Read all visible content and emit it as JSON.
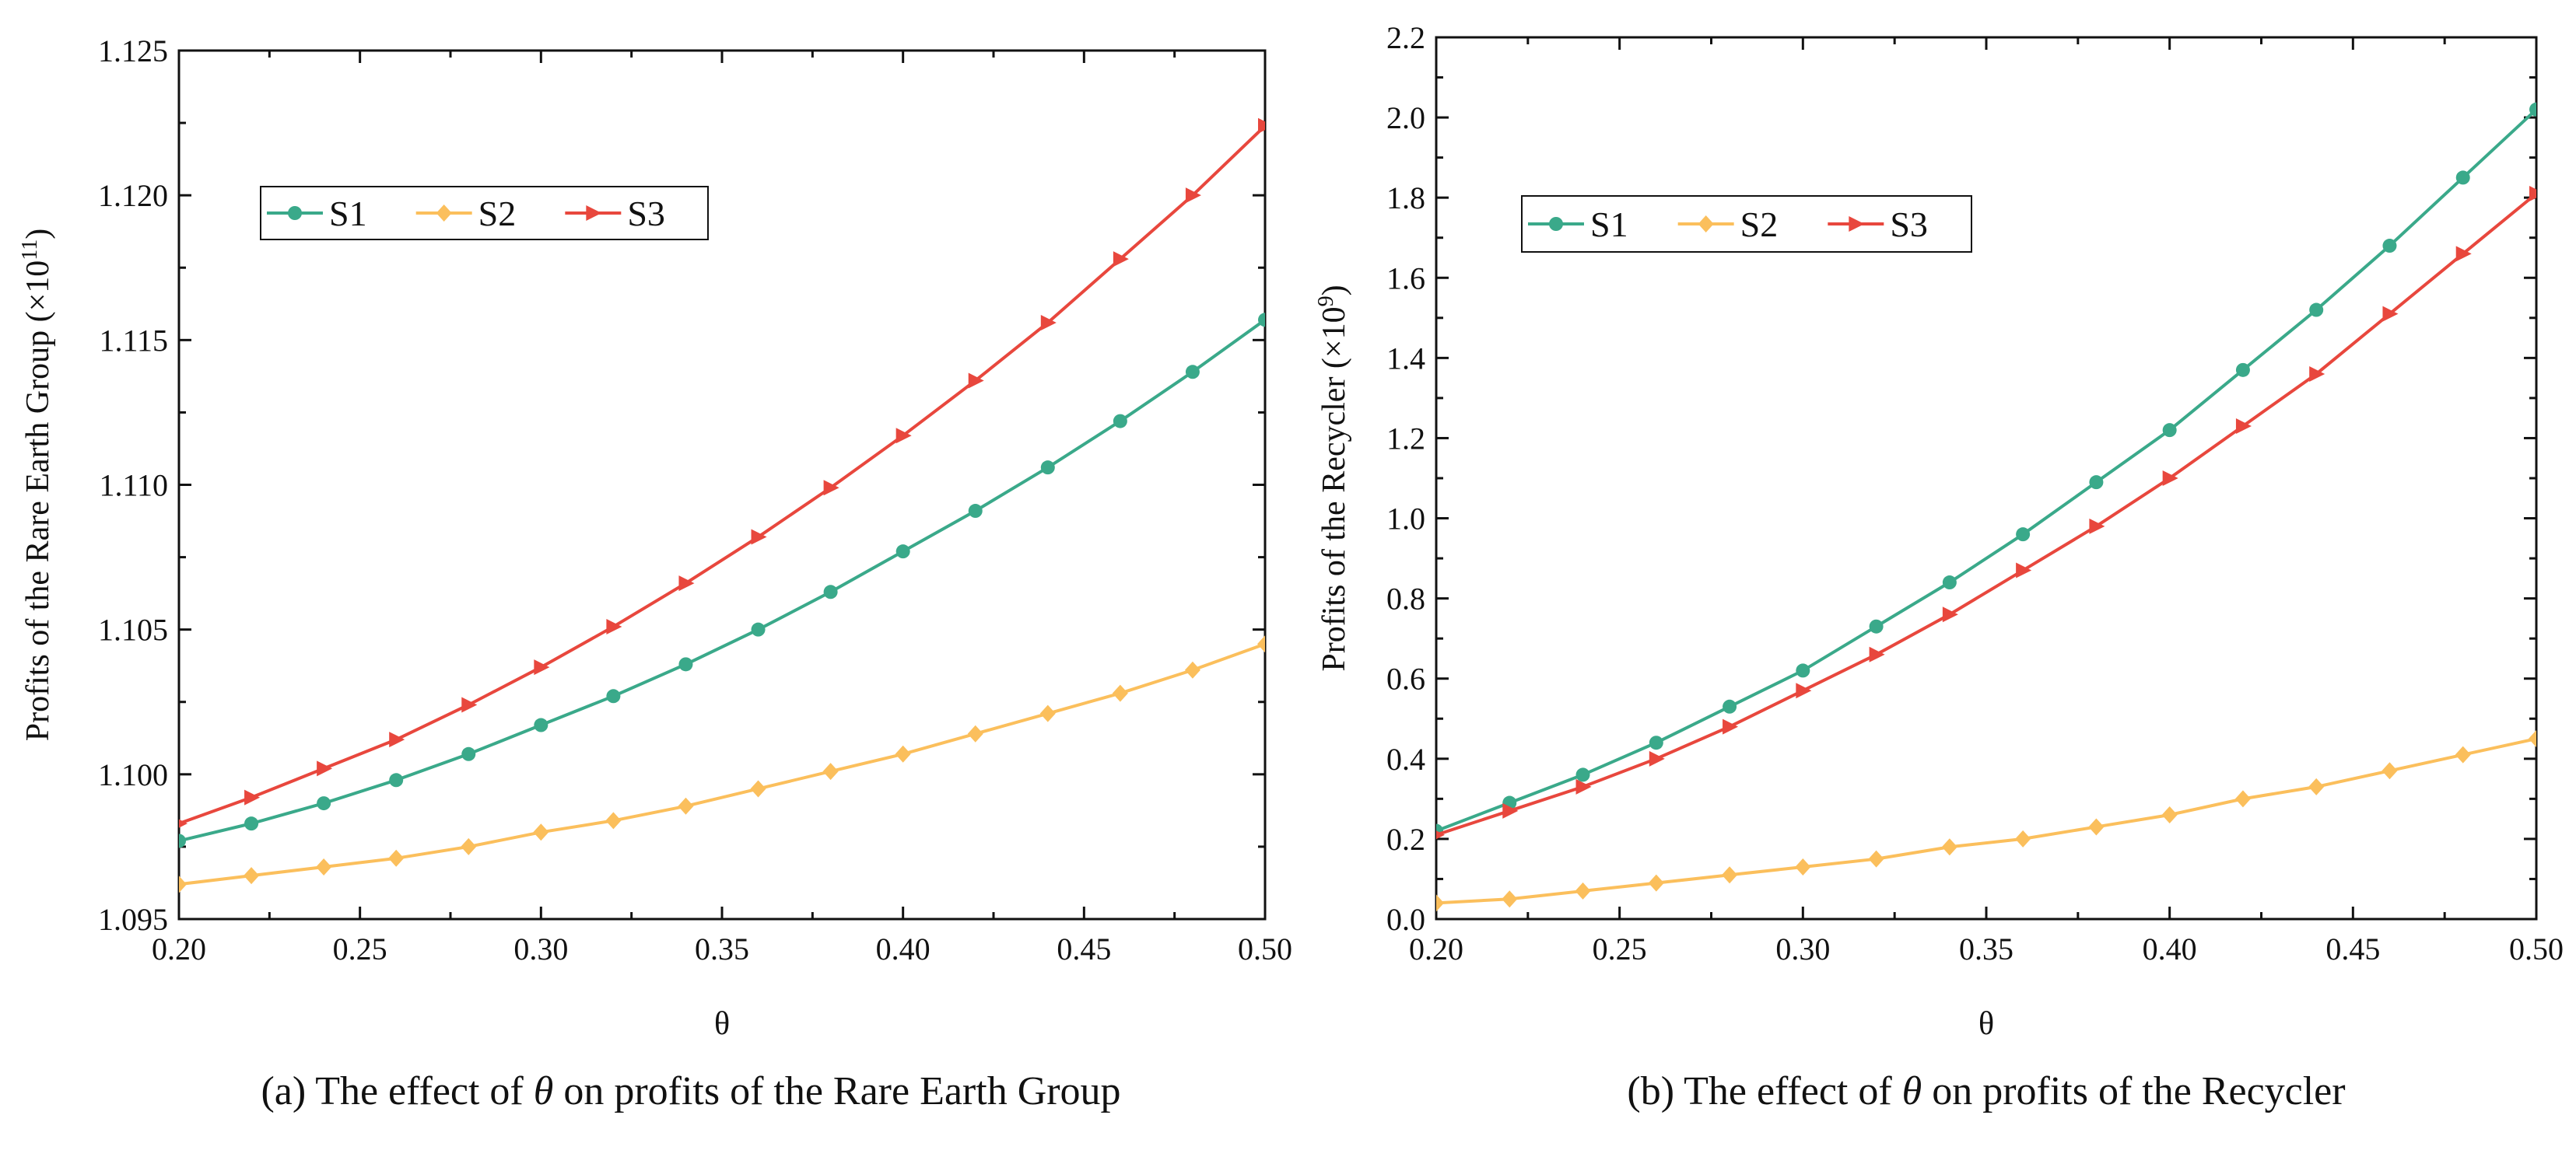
{
  "colors": {
    "S1": "#3aa98a",
    "S2": "#fbbf5c",
    "S3": "#e8473d",
    "axis": "#111111"
  },
  "captions": {
    "a_prefix": "(a) The effect of ",
    "a_suffix": " on profits of the Rare Earth Group",
    "b_prefix": "(b) The effect of ",
    "b_suffix": " on profits of the Recycler",
    "symbol": "θ"
  },
  "chart_data": [
    {
      "type": "line",
      "title": "",
      "xlabel": "θ",
      "ylabel_main": "Profits of the Rare Earth Group (×10",
      "ylabel_exp": "11",
      "ylabel_close": ")",
      "xlim": [
        0.2,
        0.5
      ],
      "ylim": [
        1.095,
        1.125
      ],
      "xticks": [
        0.2,
        0.25,
        0.3,
        0.35,
        0.4,
        0.45,
        0.5
      ],
      "xtick_labels": [
        "0.20",
        "0.25",
        "0.30",
        "0.35",
        "0.40",
        "0.45",
        "0.50"
      ],
      "yticks": [
        1.095,
        1.1,
        1.105,
        1.11,
        1.115,
        1.12,
        1.125
      ],
      "ytick_labels": [
        "1.095",
        "1.100",
        "1.105",
        "1.110",
        "1.115",
        "1.120",
        "1.125"
      ],
      "legend_position": "upper-left",
      "x": [
        0.2,
        0.22,
        0.24,
        0.26,
        0.28,
        0.3,
        0.32,
        0.34,
        0.36,
        0.38,
        0.4,
        0.42,
        0.44,
        0.46,
        0.48,
        0.5
      ],
      "series": [
        {
          "name": "S1",
          "marker": "circle",
          "values": [
            1.0977,
            1.0983,
            1.099,
            1.0998,
            1.1007,
            1.1017,
            1.1027,
            1.1038,
            1.105,
            1.1063,
            1.1077,
            1.1091,
            1.1106,
            1.1122,
            1.1139,
            1.1157
          ]
        },
        {
          "name": "S2",
          "marker": "diamond",
          "values": [
            1.0962,
            1.0965,
            1.0968,
            1.0971,
            1.0975,
            1.098,
            1.0984,
            1.0989,
            1.0995,
            1.1001,
            1.1007,
            1.1014,
            1.1021,
            1.1028,
            1.1036,
            1.1045
          ]
        },
        {
          "name": "S3",
          "marker": "triangle-right",
          "values": [
            1.0983,
            1.0992,
            1.1002,
            1.1012,
            1.1024,
            1.1037,
            1.1051,
            1.1066,
            1.1082,
            1.1099,
            1.1117,
            1.1136,
            1.1156,
            1.1178,
            1.12,
            1.1224
          ]
        }
      ]
    },
    {
      "type": "line",
      "title": "",
      "xlabel": "θ",
      "ylabel_main": "Profits of the Recycler (×10",
      "ylabel_exp": "9",
      "ylabel_close": ")",
      "xlim": [
        0.2,
        0.5
      ],
      "ylim": [
        0.0,
        2.2
      ],
      "xticks": [
        0.2,
        0.25,
        0.3,
        0.35,
        0.4,
        0.45,
        0.5
      ],
      "xtick_labels": [
        "0.20",
        "0.25",
        "0.30",
        "0.35",
        "0.40",
        "0.45",
        "0.50"
      ],
      "yticks": [
        0.0,
        0.2,
        0.4,
        0.6,
        0.8,
        1.0,
        1.2,
        1.4,
        1.6,
        1.8,
        2.0,
        2.2
      ],
      "ytick_labels": [
        "0.0",
        "0.2",
        "0.4",
        "0.6",
        "0.8",
        "1.0",
        "1.2",
        "1.4",
        "1.6",
        "1.8",
        "2.0",
        "2.2"
      ],
      "legend_position": "upper-left",
      "x": [
        0.2,
        0.22,
        0.24,
        0.26,
        0.28,
        0.3,
        0.32,
        0.34,
        0.36,
        0.38,
        0.4,
        0.42,
        0.44,
        0.46,
        0.48,
        0.5
      ],
      "series": [
        {
          "name": "S1",
          "marker": "circle",
          "values": [
            0.22,
            0.29,
            0.36,
            0.44,
            0.53,
            0.62,
            0.73,
            0.84,
            0.96,
            1.09,
            1.22,
            1.37,
            1.52,
            1.68,
            1.85,
            2.02
          ]
        },
        {
          "name": "S2",
          "marker": "diamond",
          "values": [
            0.04,
            0.05,
            0.07,
            0.09,
            0.11,
            0.13,
            0.15,
            0.18,
            0.2,
            0.23,
            0.26,
            0.3,
            0.33,
            0.37,
            0.41,
            0.45
          ]
        },
        {
          "name": "S3",
          "marker": "triangle-right",
          "values": [
            0.21,
            0.27,
            0.33,
            0.4,
            0.48,
            0.57,
            0.66,
            0.76,
            0.87,
            0.98,
            1.1,
            1.23,
            1.36,
            1.51,
            1.66,
            1.81
          ]
        }
      ]
    }
  ]
}
